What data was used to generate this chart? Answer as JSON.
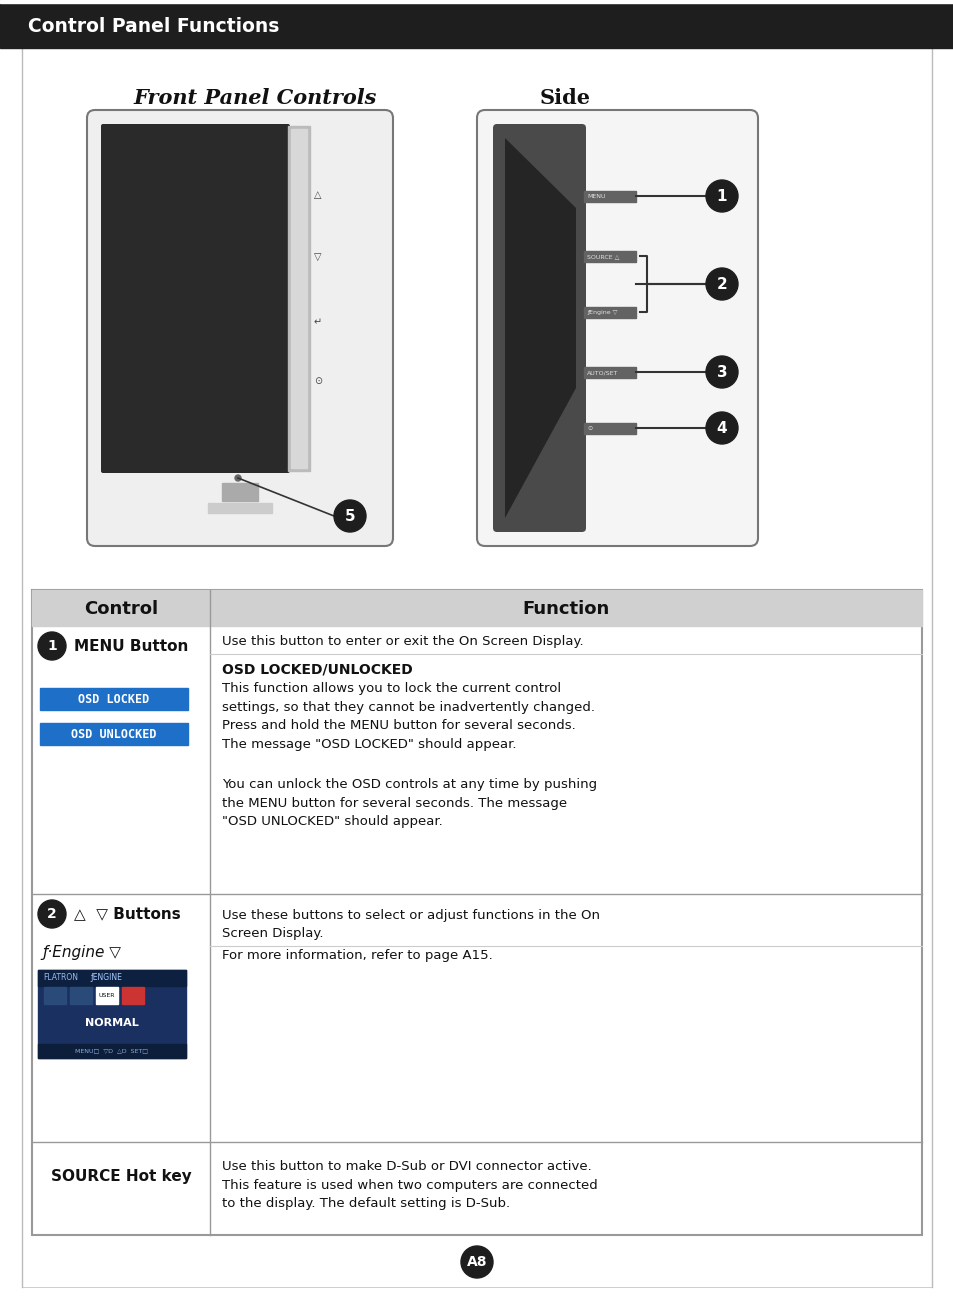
{
  "title": "Control Panel Functions",
  "title_bg": "#1e1e1e",
  "title_color": "#ffffff",
  "page_bg": "#ffffff",
  "front_panel_title": "Front Panel Controls",
  "side_title": "Side",
  "control_col_header": "Control",
  "function_col_header": "Function",
  "osd_color": "#1e6fc8",
  "osd_locked_text": "OSD LOCKED",
  "osd_unlocked_text": "OSD UNLOCKED",
  "page_marker": "A8",
  "page_marker_bg": "#1e1e1e",
  "numbered_circles_color": "#1e1e1e",
  "numbered_circles_text_color": "#ffffff",
  "row1_func_line1": "Use this button to enter or exit the On Screen Display.",
  "row1_osd_header": "OSD LOCKED/UNLOCKED",
  "row1_body1": "This function allows you to lock the current control\nsettings, so that they cannot be inadvertently changed.\nPress and hold the MENU button for several seconds.\nThe message \"OSD LOCKED\" should appear.",
  "row1_body2": "You can unlock the OSD controls at any time by pushing\nthe MENU button for several seconds. The message\n\"OSD UNLOCKED\" should appear.",
  "row2_label1": "△  ▽ Buttons",
  "row2_label2": "ƒ·Engine ▽",
  "row2_func1": "Use these buttons to select or adjust functions in the On\nScreen Display.",
  "row2_func2": "For more information, refer to page A15.",
  "row3_label": "SOURCE Hot key",
  "row3_func": "Use this button to make D-Sub or DVI connector active.\nThis feature is used when two computers are connected\nto the display. The default setting is D-Sub."
}
